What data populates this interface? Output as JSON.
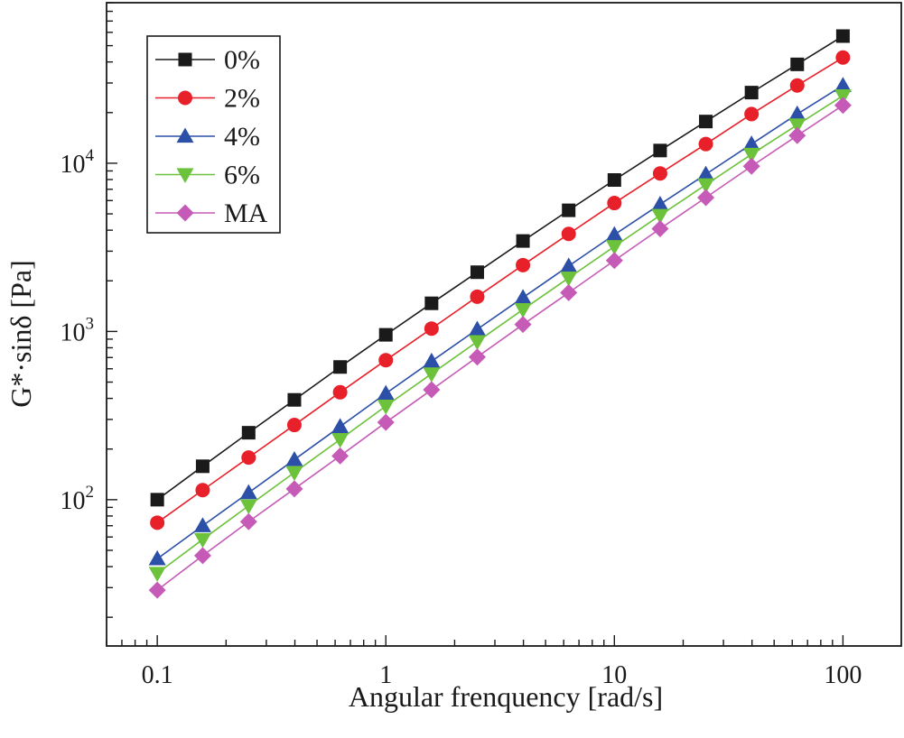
{
  "chart_data": {
    "type": "line",
    "scale": {
      "x": "log",
      "y": "log"
    },
    "xlabel": "Angular frenquency [rad/s]",
    "ylabel": "G*·sinδ [Pa]",
    "xlim": [
      0.06,
      180
    ],
    "ylim": [
      13.5,
      90000
    ],
    "x_ticks": [
      {
        "value": 0.1,
        "label": "0.1"
      },
      {
        "value": 1,
        "label": "1"
      },
      {
        "value": 10,
        "label": "10"
      },
      {
        "value": 100,
        "label": "100"
      }
    ],
    "y_ticks": [
      {
        "value": 100,
        "base": "10",
        "exp": "2"
      },
      {
        "value": 1000,
        "base": "10",
        "exp": "3"
      },
      {
        "value": 10000,
        "base": "10",
        "exp": "4"
      }
    ],
    "x": [
      0.1,
      0.158,
      0.251,
      0.398,
      0.631,
      1,
      1.585,
      2.512,
      3.981,
      6.31,
      10,
      15.85,
      25.12,
      39.81,
      63.1,
      100
    ],
    "series": [
      {
        "name": "0%",
        "marker": "square",
        "color": "#1a1a1a",
        "line_color": "#1a1a1a",
        "values": [
          100,
          158,
          250,
          392,
          615,
          955,
          1470,
          2250,
          3450,
          5250,
          7950,
          11900,
          17700,
          26300,
          38700,
          57000
        ]
      },
      {
        "name": "2%",
        "marker": "circle",
        "color": "#e8202a",
        "line_color": "#e8202a",
        "values": [
          73,
          114,
          178,
          278,
          435,
          675,
          1040,
          1610,
          2480,
          3800,
          5800,
          8700,
          13000,
          19600,
          29000,
          42500
        ]
      },
      {
        "name": "4%",
        "marker": "triangle-up",
        "color": "#2c4fa8",
        "line_color": "#2c4fa8",
        "values": [
          44.5,
          70,
          110,
          173,
          272,
          428,
          665,
          1030,
          1590,
          2450,
          3760,
          5700,
          8600,
          13000,
          19600,
          29000
        ]
      },
      {
        "name": "6%",
        "marker": "triangle-down",
        "color": "#6cc23a",
        "line_color": "#6cc23a",
        "values": [
          36.5,
          58,
          92,
          145,
          228,
          360,
          560,
          870,
          1350,
          2080,
          3200,
          4900,
          7450,
          11300,
          16900,
          25200
        ]
      },
      {
        "name": "MA",
        "marker": "diamond",
        "color": "#c65bb7",
        "line_color": "#c65bb7",
        "values": [
          29,
          46.5,
          74,
          116,
          182,
          288,
          450,
          705,
          1100,
          1700,
          2640,
          4080,
          6250,
          9600,
          14600,
          22100
        ]
      }
    ],
    "legend": {
      "position": "top-left"
    }
  }
}
